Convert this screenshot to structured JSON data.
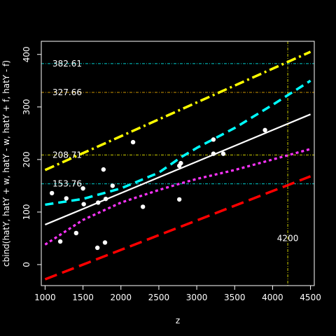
{
  "chart_data": {
    "type": "line",
    "xlabel": "z",
    "ylabel": "cbind(hatY, hatY + w, hatY - w, hatY + f, hatY - f)",
    "xlim": [
      950,
      4550
    ],
    "ylim": [
      -40,
      425
    ],
    "x_ticks": [
      1000,
      1500,
      2000,
      2500,
      3000,
      3500,
      4000,
      4500
    ],
    "y_ticks": [
      0,
      100,
      200,
      300,
      400
    ],
    "grid": false,
    "legend": "none",
    "series": [
      {
        "color": "#ffffff",
        "dash": "",
        "width": 2.2,
        "points": [
          [
            1000,
            76
          ],
          [
            4500,
            286
          ]
        ]
      },
      {
        "color": "#00ffff",
        "dash": "12,7",
        "width": 3.5,
        "points": [
          [
            1000,
            114
          ],
          [
            1500,
            125
          ],
          [
            2000,
            145
          ],
          [
            2500,
            175
          ],
          [
            2800,
            205
          ],
          [
            3000,
            222
          ],
          [
            3500,
            260
          ],
          [
            4000,
            304
          ],
          [
            4500,
            350
          ]
        ]
      },
      {
        "color": "#ff33ff",
        "dash": "4,4",
        "width": 3.2,
        "points": [
          [
            1000,
            38
          ],
          [
            1500,
            85
          ],
          [
            2000,
            118
          ],
          [
            2500,
            142
          ],
          [
            2800,
            155
          ],
          [
            3000,
            163
          ],
          [
            3500,
            180
          ],
          [
            4000,
            200
          ],
          [
            4500,
            220
          ]
        ]
      },
      {
        "color": "#ffff00",
        "dash": "14,5,3,5",
        "width": 3.5,
        "points": [
          [
            1000,
            180
          ],
          [
            4500,
            405
          ]
        ]
      },
      {
        "color": "#ff0000",
        "dash": "18,8",
        "width": 3.5,
        "points": [
          [
            1000,
            -28
          ],
          [
            4500,
            168
          ]
        ]
      }
    ],
    "scatter": {
      "color": "#ffffff",
      "points": [
        [
          1090,
          136
        ],
        [
          1200,
          44
        ],
        [
          1280,
          126
        ],
        [
          1410,
          60
        ],
        [
          1500,
          145
        ],
        [
          1510,
          115
        ],
        [
          1690,
          32
        ],
        [
          1700,
          118
        ],
        [
          1770,
          181
        ],
        [
          1790,
          42
        ],
        [
          1800,
          125
        ],
        [
          1890,
          150
        ],
        [
          2160,
          233
        ],
        [
          2290,
          110
        ],
        [
          2770,
          124
        ],
        [
          2770,
          188
        ],
        [
          2790,
          193
        ],
        [
          3220,
          211
        ],
        [
          3220,
          238
        ],
        [
          3350,
          211
        ],
        [
          3900,
          256
        ]
      ]
    },
    "hlines": [
      {
        "y": 382.61,
        "label": "382.61",
        "color": "#00cdcd"
      },
      {
        "y": 327.66,
        "label": "327.66",
        "color": "#cd9500"
      },
      {
        "y": 208.71,
        "label": "208.71",
        "color": "#cdcd00"
      },
      {
        "y": 153.76,
        "label": "153.76",
        "color": "#00cdcd"
      }
    ],
    "vline": {
      "x": 4200,
      "label": "4200",
      "color": "#cdcd00",
      "label_y": 50
    }
  }
}
